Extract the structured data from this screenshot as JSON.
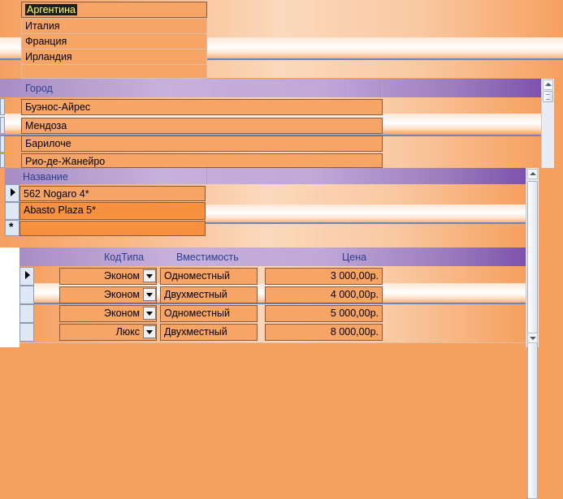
{
  "countries": {
    "rows": [
      {
        "name": "Аргентина",
        "selected": true
      },
      {
        "name": "Италия",
        "selected": false
      },
      {
        "name": "Франция",
        "selected": false
      },
      {
        "name": "Ирландия",
        "selected": false
      }
    ]
  },
  "cities": {
    "header": "Город",
    "rows": [
      "Буэнос-Айрес",
      "Мендоза",
      "Барилоче",
      "Рио-де-Жанейро"
    ]
  },
  "hotels": {
    "header": "Название",
    "rows": [
      "562 Nogaro 4*",
      "Abasto Plaza 5*"
    ],
    "new_row_marker": "*"
  },
  "rooms": {
    "headers": {
      "type": "КодТипа",
      "capacity": "Вместимость",
      "price": "Цена"
    },
    "rows": [
      {
        "type": "Эконом",
        "capacity": "Одноместный",
        "price": "3 000,00р."
      },
      {
        "type": "Эконом",
        "capacity": "Двухместный",
        "price": "4 000,00р."
      },
      {
        "type": "Эконом",
        "capacity": "Одноместный",
        "price": "5 000,00р."
      },
      {
        "type": "Люкс",
        "capacity": "Двухместный",
        "price": "8 000,00р."
      }
    ]
  },
  "colors": {
    "background": "#f6a060",
    "header_bar": "#c0a7d8",
    "header_text": "#2d3f8f",
    "selection": "#1f1f1f",
    "selection_text": "#ffff66"
  }
}
